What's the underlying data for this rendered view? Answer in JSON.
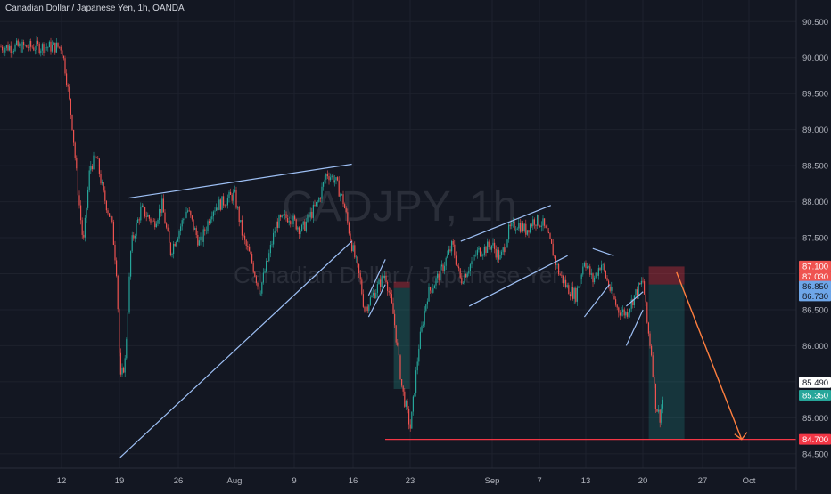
{
  "header": {
    "title": "Canadian Dollar / Japanese Yen, 1h, OANDA"
  },
  "watermark": {
    "symbol": "CADJPY, 1h",
    "name": "Canadian Dollar / Japanese Yen"
  },
  "colors": {
    "background": "#131722",
    "grid": "#1e222d",
    "up": "#26a69a",
    "down": "#ef5350",
    "pattern_line": "#9ec0f5",
    "support_line": "#f23645",
    "forecast_arrow": "#ff7f3f",
    "axis_text": "#b2b5be"
  },
  "chart_data": {
    "type": "candlestick",
    "symbol": "CADJPY",
    "interval": "1h",
    "source": "OANDA",
    "ylim": [
      84.3,
      90.8
    ],
    "y_ticks": [
      "84.500",
      "85.000",
      "85.500",
      "86.000",
      "86.500",
      "87.000",
      "87.500",
      "88.000",
      "88.500",
      "89.000",
      "89.500",
      "90.000",
      "90.500"
    ],
    "x_ticks": [
      "12",
      "19",
      "26",
      "Aug",
      "9",
      "16",
      "23",
      "Sep",
      "7",
      "13",
      "20",
      "27",
      "Oct"
    ],
    "price_path": [
      [
        "12",
        90.15
      ],
      [
        "12.5",
        89.8
      ],
      [
        "13.3",
        89.05
      ],
      [
        "14",
        88.1
      ],
      [
        "14.6",
        87.4
      ],
      [
        "15.4",
        88.5
      ],
      [
        "16.2",
        88.6
      ],
      [
        "17",
        88.1
      ],
      [
        "18",
        87.7
      ],
      [
        "18.6",
        87.0
      ],
      [
        "19",
        85.5
      ],
      [
        "19.6",
        85.8
      ],
      [
        "20.3",
        87.4
      ],
      [
        "21.5",
        87.9
      ],
      [
        "23",
        87.7
      ],
      [
        "24",
        87.95
      ],
      [
        "25",
        87.3
      ],
      [
        "26",
        87.6
      ],
      [
        "27",
        87.9
      ],
      [
        "28.5",
        87.4
      ],
      [
        "30",
        87.9
      ],
      [
        "Aug 1",
        88.1
      ],
      [
        "Aug 2",
        87.5
      ],
      [
        "Aug 3",
        87.2
      ],
      [
        "Aug 4",
        86.75
      ],
      [
        "Aug 5",
        87.2
      ],
      [
        "Aug 6",
        87.7
      ],
      [
        "Aug 7.5",
        87.8
      ],
      [
        "Aug 9",
        87.6
      ],
      [
        "Aug 10",
        87.8
      ],
      [
        "Aug 11",
        88.0
      ],
      [
        "Aug 12",
        88.4
      ],
      [
        "Aug 13",
        88.3
      ],
      [
        "Aug 14",
        88.0
      ],
      [
        "Aug 15",
        87.4
      ],
      [
        "Aug 16",
        86.9
      ],
      [
        "Aug 16.5",
        86.5
      ],
      [
        "Aug 18",
        86.8
      ],
      [
        "Aug 19",
        87.0
      ],
      [
        "Aug 20",
        86.4
      ],
      [
        "Aug 21",
        85.4
      ],
      [
        "Aug 22",
        84.85
      ],
      [
        "Aug 23",
        86.0
      ],
      [
        "Aug 24",
        86.7
      ],
      [
        "Aug 25.5",
        87.0
      ],
      [
        "Aug 27",
        87.4
      ],
      [
        "Aug 28",
        86.9
      ],
      [
        "Aug 29",
        87.1
      ],
      [
        "Aug 30",
        87.3
      ],
      [
        "Sep 1",
        87.4
      ],
      [
        "Sep 2",
        87.2
      ],
      [
        "Sep 3",
        87.6
      ],
      [
        "Sep 4",
        87.7
      ],
      [
        "Sep 5",
        87.6
      ],
      [
        "Sep 6",
        87.75
      ],
      [
        "Sep 7",
        87.7
      ],
      [
        "Sep 8",
        87.4
      ],
      [
        "Sep 9",
        87.0
      ],
      [
        "Sep 10",
        86.8
      ],
      [
        "Sep 11",
        86.7
      ],
      [
        "Sep 12",
        87.2
      ],
      [
        "Sep 13",
        86.9
      ],
      [
        "Sep 14",
        87.15
      ],
      [
        "Sep 15",
        86.8
      ],
      [
        "Sep 16",
        86.5
      ],
      [
        "Sep 17",
        86.45
      ],
      [
        "Sep 18",
        86.7
      ],
      [
        "Sep 19",
        86.9
      ],
      [
        "Sep 19.5",
        86.3
      ],
      [
        "Sep 20",
        85.9
      ],
      [
        "Sep 20.5",
        85.2
      ],
      [
        "Sep 21",
        85.0
      ],
      [
        "Sep 21.5",
        85.35
      ]
    ],
    "price_labels": [
      {
        "value": "87.100",
        "kind": "sl"
      },
      {
        "value": "87.030",
        "kind": "hidden"
      },
      {
        "value": "86.850",
        "kind": "entry"
      },
      {
        "value": "86.730",
        "kind": "entry"
      },
      {
        "value": "85.490",
        "kind": "plain"
      },
      {
        "value": "85.350",
        "kind": "last"
      },
      {
        "value": "84.700",
        "kind": "support"
      }
    ],
    "drawings": {
      "support_level": 84.7,
      "patterns": [
        {
          "name": "rising wedge 1",
          "upper": [
            [
              "20",
              88.05
            ],
            [
              "Aug 15",
              88.52
            ]
          ],
          "lower": [
            [
              "19",
              84.45
            ],
            [
              "Aug 15",
              87.45
            ]
          ]
        },
        {
          "name": "bear flag 1",
          "upper": [
            [
              "Aug 17",
              86.7
            ],
            [
              "Aug 19",
              87.2
            ]
          ],
          "lower": [
            [
              "Aug 17",
              86.4
            ],
            [
              "Aug 19",
              86.85
            ]
          ]
        },
        {
          "name": "rising wedge 2",
          "upper": [
            [
              "Aug 28",
              87.45
            ],
            [
              "Sep 8",
              87.95
            ]
          ],
          "lower": [
            [
              "Aug 29",
              86.55
            ],
            [
              "Sep 10",
              87.25
            ]
          ]
        },
        {
          "name": "bear flag 2",
          "upper": [
            [
              "Sep 13",
              87.35
            ],
            [
              "Sep 15.5",
              87.25
            ]
          ],
          "lower": [
            [
              "Sep 12",
              86.4
            ],
            [
              "Sep 15",
              86.85
            ]
          ]
        },
        {
          "name": "bear flag 3",
          "upper": [
            [
              "Sep 17",
              86.55
            ],
            [
              "Sep 19",
              86.75
            ]
          ],
          "lower": [
            [
              "Sep 17",
              86.0
            ],
            [
              "Sep 19",
              86.5
            ]
          ]
        }
      ],
      "positions": [
        {
          "entry": 86.8,
          "stop": 86.85,
          "target": 85.4
        },
        {
          "entry": 86.85,
          "stop": 87.1,
          "target": 84.7
        }
      ],
      "forecast": {
        "from": 87.02,
        "to": 84.7
      }
    }
  }
}
